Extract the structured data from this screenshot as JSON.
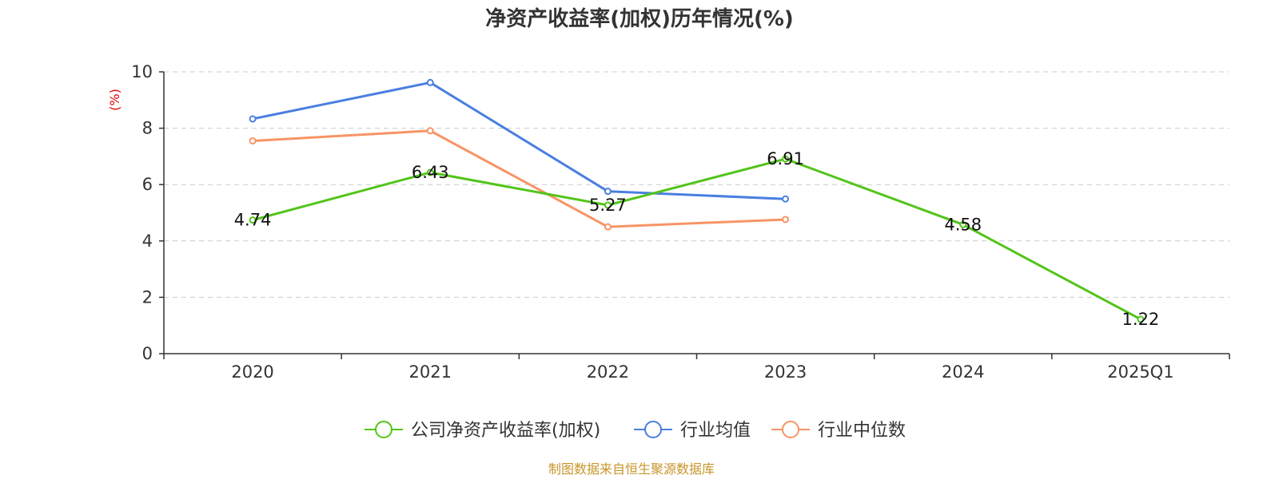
{
  "chart_data": {
    "type": "line",
    "title": "净资产收益率(加权)历年情况(%)",
    "ylabel": "(%)",
    "xlabel": "",
    "categories": [
      "2020",
      "2021",
      "2022",
      "2023",
      "2024",
      "2025Q1"
    ],
    "ylim": [
      0,
      10
    ],
    "yticks": [
      "0",
      "2",
      "4",
      "6",
      "8",
      "10"
    ],
    "grid": true,
    "legend_position": "bottom",
    "series": [
      {
        "name": "公司净资产收益率(加权)",
        "color": "#52c41a",
        "values": [
          4.74,
          6.43,
          5.27,
          6.91,
          4.58,
          1.22
        ],
        "labels": [
          "4.74",
          "6.43",
          "5.27",
          "6.91",
          "4.58",
          "1.22"
        ]
      },
      {
        "name": "行业均值",
        "color": "#4a7fe0",
        "values": [
          8.33,
          9.62,
          5.76,
          5.49,
          null,
          null
        ]
      },
      {
        "name": "行业中位数",
        "color": "#f79465",
        "values": [
          7.55,
          7.91,
          4.5,
          4.76,
          null,
          null
        ]
      }
    ]
  },
  "source": "制图数据来自恒生聚源数据库"
}
